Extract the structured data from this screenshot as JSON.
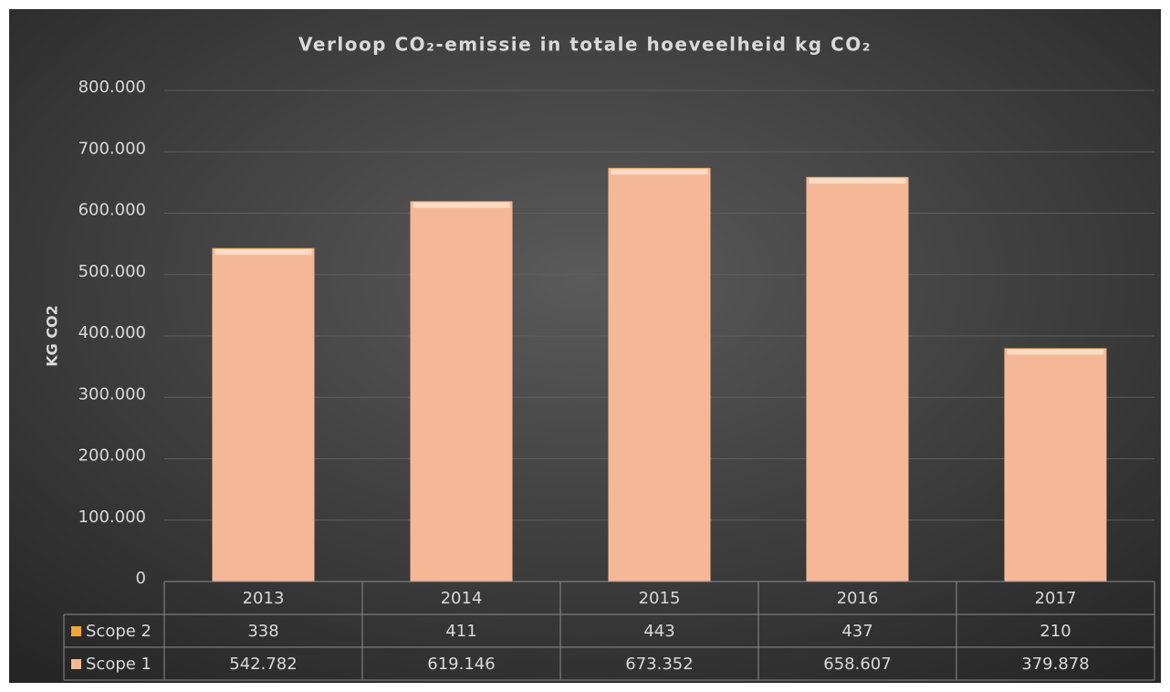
{
  "chart_data": {
    "type": "stacked_bar",
    "title": "Verloop CO₂-emissie in totale hoeveelheid kg CO₂",
    "y_label": "KG CO2",
    "categories": [
      "2013",
      "2014",
      "2015",
      "2016",
      "2017"
    ],
    "series": [
      {
        "name": "Scope 2",
        "color": "#f2a33a",
        "values": [
          338,
          411,
          443,
          437,
          210
        ],
        "value_labels": [
          "338",
          "411",
          "443",
          "437",
          "210"
        ]
      },
      {
        "name": "Scope 1",
        "color": "#f5b896",
        "values": [
          542782,
          619146,
          673352,
          658607,
          379878
        ],
        "value_labels": [
          "542.782",
          "619.146",
          "673.352",
          "658.607",
          "379.878"
        ]
      }
    ],
    "ylim": [
      0,
      800000
    ],
    "yticks": [
      0,
      {
        "value": 100000,
        "label": "100.000"
      },
      {
        "value": 200000,
        "label": "200.000"
      },
      {
        "value": 300000,
        "label": "300.000"
      },
      {
        "value": 400000,
        "label": "400.000"
      },
      {
        "value": 500000,
        "label": "500.000"
      },
      {
        "value": 600000,
        "label": "600.000"
      },
      {
        "value": 700000,
        "label": "700.000"
      },
      {
        "value": 800000,
        "label": "800.000"
      }
    ],
    "grid": true,
    "data_table": true
  }
}
